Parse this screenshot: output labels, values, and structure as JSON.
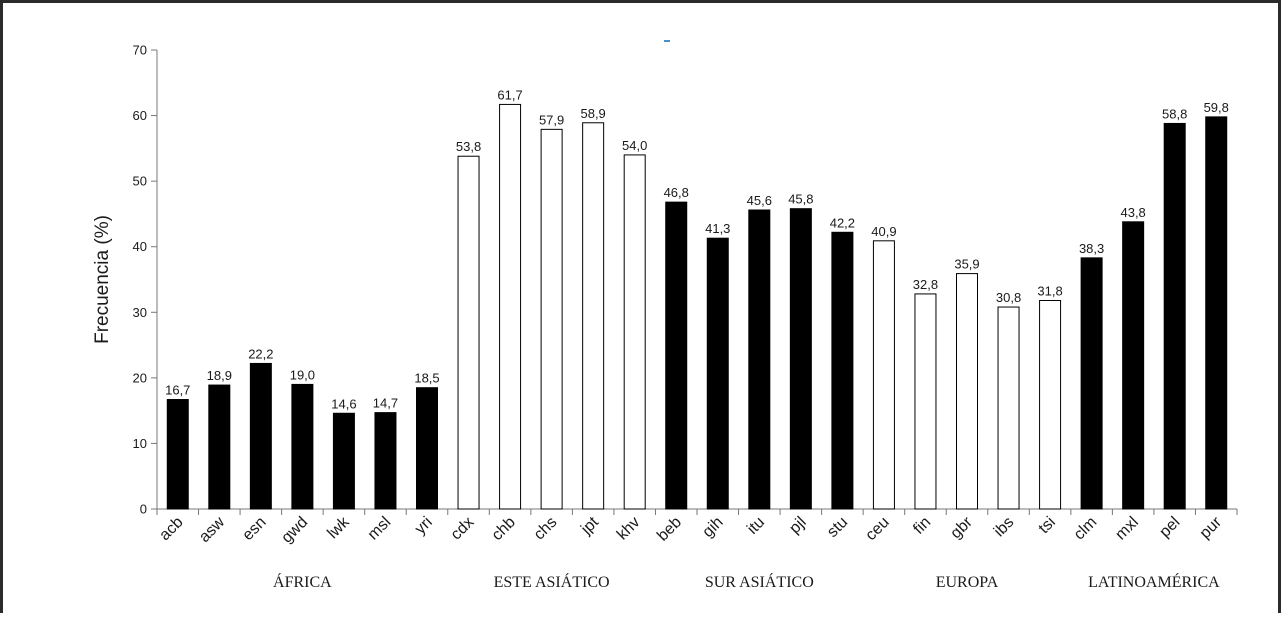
{
  "chart_data": {
    "type": "bar",
    "title": "",
    "ylabel": "Frecuencia (%)",
    "xlabel": "",
    "ylim": [
      0,
      70
    ],
    "yticks": [
      0,
      10,
      20,
      30,
      40,
      50,
      60,
      70
    ],
    "grid": false,
    "legend": "none",
    "colors": {
      "filled": "#000000",
      "hollow": "#ffffff",
      "stroke": "#000000"
    },
    "groups": [
      {
        "name": "ÁFRICA",
        "fill": "filled",
        "categories": [
          "acb",
          "asw",
          "esn",
          "gwd",
          "lwk",
          "msl",
          "yri"
        ],
        "values": [
          16.7,
          18.9,
          22.2,
          19.0,
          14.6,
          14.7,
          18.5
        ],
        "labels": [
          "16,7",
          "18,9",
          "22,2",
          "19,0",
          "14,6",
          "14,7",
          "18,5"
        ]
      },
      {
        "name": "ESTE ASIÁTICO",
        "fill": "hollow",
        "categories": [
          "cdx",
          "chb",
          "chs",
          "jpt",
          "khv"
        ],
        "values": [
          53.8,
          61.7,
          57.9,
          58.9,
          54.0
        ],
        "labels": [
          "53,8",
          "61,7",
          "57,9",
          "58,9",
          "54,0"
        ]
      },
      {
        "name": "SUR ASIÁTICO",
        "fill": "filled",
        "categories": [
          "beb",
          "gih",
          "itu",
          "pjl",
          "stu"
        ],
        "values": [
          46.8,
          41.3,
          45.6,
          45.8,
          42.2
        ],
        "labels": [
          "46,8",
          "41,3",
          "45,6",
          "45,8",
          "42,2"
        ]
      },
      {
        "name": "EUROPA",
        "fill": "hollow",
        "categories": [
          "ceu",
          "fin",
          "gbr",
          "ibs",
          "tsi"
        ],
        "values": [
          40.9,
          32.8,
          35.9,
          30.8,
          31.8
        ],
        "labels": [
          "40,9",
          "32,8",
          "35,9",
          "30,8",
          "31,8"
        ]
      },
      {
        "name": "LATINOAMÉRICA",
        "fill": "filled",
        "categories": [
          "clm",
          "mxl",
          "pel",
          "pur"
        ],
        "values": [
          38.3,
          43.8,
          58.8,
          59.8
        ],
        "labels": [
          "38,3",
          "43,8",
          "58,8",
          "59,8"
        ]
      }
    ]
  }
}
